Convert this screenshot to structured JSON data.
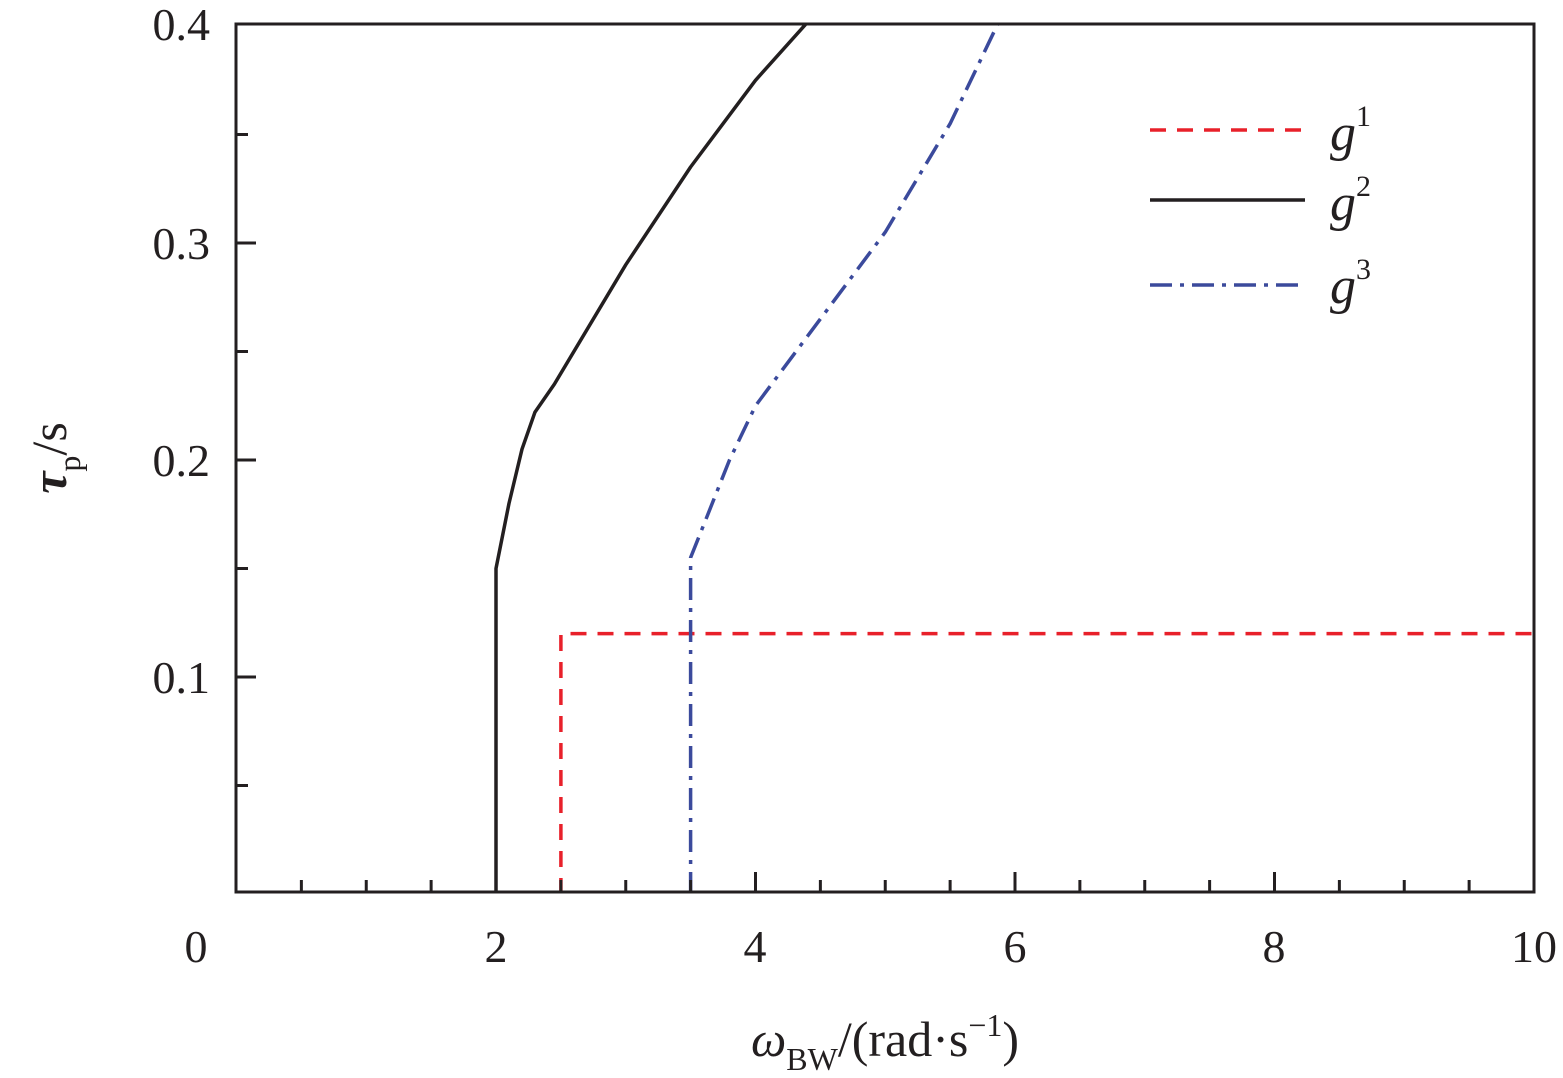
{
  "chart_data": {
    "type": "line",
    "title": "",
    "xlabel": {
      "main": "ω",
      "sub": "BW",
      "tail": "/(rad·s",
      "exp": "−1",
      "close": ")"
    },
    "ylabel": {
      "main": "τ",
      "sub": "p",
      "tail": "/s"
    },
    "xlim": [
      0,
      10
    ],
    "ylim": [
      0,
      0.4
    ],
    "x_ticks": [
      "0",
      "2",
      "4",
      "6",
      "8",
      "10"
    ],
    "y_ticks": [
      "0.1",
      "0.2",
      "0.3",
      "0.4"
    ],
    "legend_position": "top-right",
    "series": [
      {
        "name": "g",
        "sup": "1",
        "style": "dashed",
        "color": "#e8202a",
        "points": [
          [
            2.5,
            0.0
          ],
          [
            2.5,
            0.12
          ],
          [
            10.0,
            0.12
          ]
        ]
      },
      {
        "name": "g",
        "sup": "2",
        "style": "solid",
        "color": "#231f20",
        "points": [
          [
            2.0,
            0.0
          ],
          [
            2.0,
            0.15
          ],
          [
            2.1,
            0.18
          ],
          [
            2.2,
            0.205
          ],
          [
            2.3,
            0.222
          ],
          [
            2.45,
            0.235
          ],
          [
            3.0,
            0.29
          ],
          [
            3.5,
            0.335
          ],
          [
            4.0,
            0.375
          ],
          [
            4.45,
            0.405
          ]
        ]
      },
      {
        "name": "g",
        "sup": "3",
        "style": "dashdot",
        "color": "#3b4a9c",
        "points": [
          [
            3.5,
            0.0
          ],
          [
            3.5,
            0.155
          ],
          [
            3.6,
            0.17
          ],
          [
            3.8,
            0.2
          ],
          [
            4.0,
            0.225
          ],
          [
            4.5,
            0.265
          ],
          [
            5.0,
            0.305
          ],
          [
            5.5,
            0.355
          ],
          [
            5.9,
            0.405
          ]
        ]
      }
    ]
  }
}
